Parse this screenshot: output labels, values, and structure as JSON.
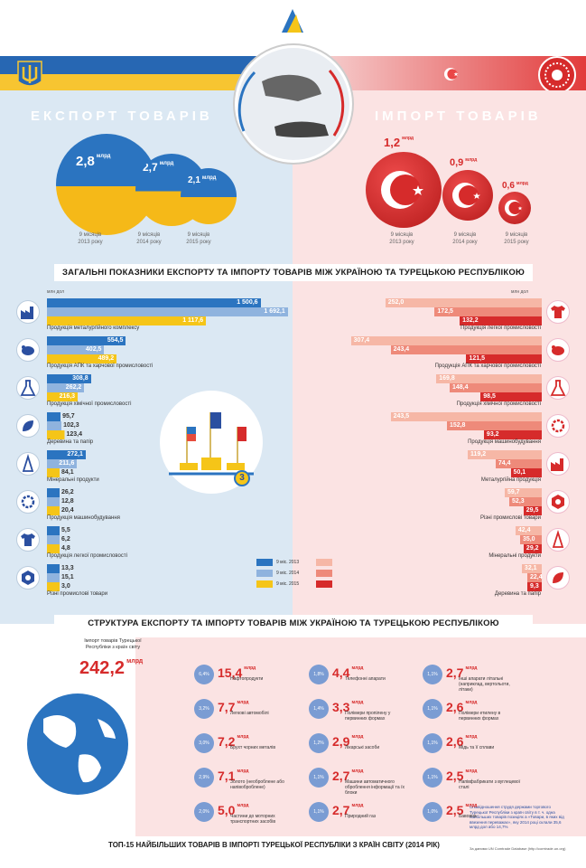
{
  "header": {
    "logo_text": "",
    "emblem_left": "trident-emblem",
    "emblem_right": "turkish-emblem"
  },
  "export": {
    "title": "ЕКСПОРТ ТОВАРІВ",
    "bubbles": [
      {
        "value": "2,8",
        "unit": "млрд",
        "caption1": "9 місяців",
        "caption2": "2013 року"
      },
      {
        "value": "2,7",
        "unit": "млрд",
        "caption1": "9 місяців",
        "caption2": "2014 року"
      },
      {
        "value": "2,1",
        "unit": "млрд",
        "caption1": "9 місяців",
        "caption2": "2015 року"
      }
    ]
  },
  "import": {
    "title": "ІМПОРТ ТОВАРІВ",
    "bubbles": [
      {
        "value": "1,2",
        "unit": "млрд",
        "caption1": "9 місяців",
        "caption2": "2013 року"
      },
      {
        "value": "0,9",
        "unit": "млрд",
        "caption1": "9 місяців",
        "caption2": "2014 року"
      },
      {
        "value": "0,6",
        "unit": "млрд",
        "caption1": "9 місяців",
        "caption2": "2015 року"
      }
    ]
  },
  "title_general": "ЗАГАЛЬНІ ПОКАЗНИКИ ЕКСПОРТУ ТА ІМПОРТУ ТОВАРІВ МІЖ УКРАЇНОЮ ТА ТУРЕЦЬКОЮ РЕСПУБЛІКОЮ",
  "title_structure": "СТРУКТУРА ЕКСПОРТУ ТА ІМПОРТУ ТОВАРІВ МІЖ УКРАЇНОЮ ТА ТУРЕЦЬКОЮ РЕСПУБЛІКОЮ",
  "title_top": "ТОП-15 НАЙБІЛЬШИХ ТОВАРІВ В ІМПОРТІ ТУРЕЦЬКОЇ РЕСПУБЛІКИ З КРАЇН СВІТУ (2014 РІК)",
  "unit_label": "млн дол",
  "podium_rank": "3",
  "legend": [
    {
      "label": "9 міс. 2013"
    },
    {
      "label": "9 міс. 2014"
    },
    {
      "label": "9 міс. 2015"
    }
  ],
  "colors": {
    "blue": "#2b74c0",
    "yellow": "#f5c518",
    "light_yellow": "#f8df7a",
    "light_blue": "#8fb3de",
    "red": "#d62b2b",
    "salmon": "#ee8a7a",
    "light_salmon": "#f6b7a6"
  },
  "export_structure": [
    {
      "name": "Продукція металургійного комплексу",
      "values": [
        "1 500,6",
        "1 692,1",
        "1 117,6"
      ],
      "nums": [
        1500.6,
        1692.1,
        1117.6
      ],
      "icon": "factory-icon"
    },
    {
      "name": "Продукція АПК та харчової промисловості",
      "values": [
        "554,5",
        "402,5",
        "489,2"
      ],
      "nums": [
        554.5,
        402.5,
        489.2
      ],
      "icon": "cow-icon"
    },
    {
      "name": "Продукція хімічної промисловості",
      "values": [
        "308,8",
        "262,2",
        "216,3"
      ],
      "nums": [
        308.8,
        262.2,
        216.3
      ],
      "icon": "flask-icon"
    },
    {
      "name": "Деревина та папір",
      "values": [
        "95,7",
        "102,3",
        "123,4"
      ],
      "nums": [
        95.7,
        102.3,
        123.4
      ],
      "icon": "leaf-icon"
    },
    {
      "name": "Мінеральні продукти",
      "values": [
        "272,1",
        "211,6",
        "84,1"
      ],
      "nums": [
        272.1,
        211.6,
        84.1
      ],
      "icon": "oil-rig-icon"
    },
    {
      "name": "Продукція машинобудування",
      "values": [
        "26,2",
        "12,8",
        "20,4"
      ],
      "nums": [
        26.2,
        12.8,
        20.4
      ],
      "icon": "gear-icon"
    },
    {
      "name": "Продукція легкої промисловості",
      "values": [
        "5,5",
        "6,2",
        "4,8"
      ],
      "nums": [
        5.5,
        6.2,
        4.8
      ],
      "icon": "shirt-icon"
    },
    {
      "name": "Різні промислові товари",
      "values": [
        "13,3",
        "15,1",
        "3,0"
      ],
      "nums": [
        13.3,
        15.1,
        3.0
      ],
      "icon": "hexagon-icon"
    }
  ],
  "import_structure": [
    {
      "name": "Продукція легкої промисловості",
      "values": [
        "252,0",
        "172,5",
        "132,2"
      ],
      "nums": [
        252.0,
        172.5,
        132.2
      ],
      "icon": "shirt-icon"
    },
    {
      "name": "Продукція АПК та харчової промисловості",
      "values": [
        "307,4",
        "243,4",
        "121,5"
      ],
      "nums": [
        307.4,
        243.4,
        121.5
      ],
      "icon": "cow-icon"
    },
    {
      "name": "Продукція хімічної промисловості",
      "values": [
        "169,8",
        "148,4",
        "98,5"
      ],
      "nums": [
        169.8,
        148.4,
        98.5
      ],
      "icon": "flask-icon"
    },
    {
      "name": "Продукція машинобудування",
      "values": [
        "243,5",
        "152,8",
        "93,2"
      ],
      "nums": [
        243.5,
        152.8,
        93.2
      ],
      "icon": "gear-icon"
    },
    {
      "name": "Металургійна продукція",
      "values": [
        "119,2",
        "74,4",
        "50,1"
      ],
      "nums": [
        119.2,
        74.4,
        50.1
      ],
      "icon": "factory-icon"
    },
    {
      "name": "Різні промислові товари",
      "values": [
        "59,7",
        "52,3",
        "29,5"
      ],
      "nums": [
        59.7,
        52.3,
        29.5
      ],
      "icon": "hexagon-icon"
    },
    {
      "name": "Мінеральні продукти",
      "values": [
        "42,4",
        "35,0",
        "29,2"
      ],
      "nums": [
        42.4,
        35.0,
        29.2
      ],
      "icon": "oil-rig-icon"
    },
    {
      "name": "Деревина та папір",
      "values": [
        "32,1",
        "22,4",
        "9,3"
      ],
      "nums": [
        32.1,
        22.4,
        9.3
      ],
      "icon": "leaf-icon"
    }
  ],
  "turkey_import": {
    "label": "Імпорт товарів Турецької Республіки з країн світу",
    "value": "242,2",
    "unit": "млрд"
  },
  "top15": [
    {
      "pct": "6,4%",
      "value": "15,4",
      "unit": "млрд",
      "label": "Нафтопродукти"
    },
    {
      "pct": "3,2%",
      "value": "7,7",
      "unit": "млрд",
      "label": "Легкові автомобілі"
    },
    {
      "pct": "3,0%",
      "value": "7,2",
      "unit": "млрд",
      "label": "Брухт чорних металів"
    },
    {
      "pct": "2,9%",
      "value": "7,1",
      "unit": "млрд",
      "label": "Золото (необроблене або напівоброблене)"
    },
    {
      "pct": "2,0%",
      "value": "5,0",
      "unit": "млрд",
      "label": "Частини до моторних транспортних засобів"
    },
    {
      "pct": "1,8%",
      "value": "4,4",
      "unit": "млрд",
      "label": "Телефонні апарати"
    },
    {
      "pct": "1,4%",
      "value": "3,3",
      "unit": "млрд",
      "label": "Полімери пропілену у первинних формах"
    },
    {
      "pct": "1,2%",
      "value": "2,9",
      "unit": "млрд",
      "label": "Лікарські засоби"
    },
    {
      "pct": "1,1%",
      "value": "2,7",
      "unit": "млрд",
      "label": "Машини автоматичного оброблення інформації та їх блоки"
    },
    {
      "pct": "1,1%",
      "value": "2,7",
      "unit": "млрд",
      "label": "Природний газ"
    },
    {
      "pct": "1,1%",
      "value": "2,7",
      "unit": "млрд",
      "label": "Інші апарати літальні (наприклад, вертольоти, літаки)"
    },
    {
      "pct": "1,1%",
      "value": "2,6",
      "unit": "млрд",
      "label": "Полімери етилену в первинних формах"
    },
    {
      "pct": "1,1%",
      "value": "2,6",
      "unit": "млрд",
      "label": "Мідь та її сплави"
    },
    {
      "pct": "1,1%",
      "value": "2,5",
      "unit": "млрд",
      "label": "Напівфабрикати з вуглецевої сталі"
    },
    {
      "pct": "1,0%",
      "value": "2,5",
      "unit": "млрд",
      "label": "Бавовна"
    }
  ],
  "note": "Співвідношення струдя держами торгового Турецької Республіки з країн світу в т. ч. одна найбільших товарів позиціях а «Товари, в яких від ввезення переважає», яку 2014 році склали 35,6 млрд дол або 14,7%",
  "source": "За даними UN Comtrade Database (http://comtrade.un.org)"
}
